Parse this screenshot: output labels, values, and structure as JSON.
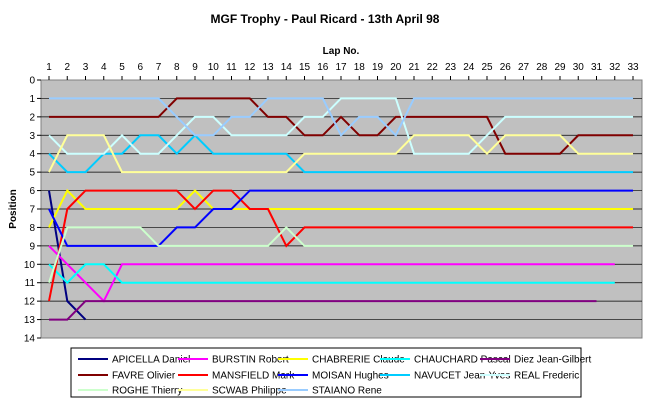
{
  "chart_data": {
    "type": "line",
    "title": "MGF Trophy - Paul Ricard - 13th April 98",
    "xlabel": "Lap No.",
    "ylabel": "Position",
    "x_axis_position": "top",
    "y_reversed": true,
    "xlim": [
      1,
      33
    ],
    "ylim": [
      0,
      14
    ],
    "x_ticks": [
      "1",
      "2",
      "3",
      "4",
      "5",
      "6",
      "7",
      "8",
      "9",
      "10",
      "11",
      "12",
      "13",
      "14",
      "15",
      "16",
      "17",
      "18",
      "19",
      "20",
      "21",
      "22",
      "23",
      "24",
      "25",
      "26",
      "27",
      "28",
      "29",
      "30",
      "31",
      "32",
      "33"
    ],
    "y_ticks": [
      "0",
      "1",
      "2",
      "3",
      "4",
      "5",
      "6",
      "7",
      "8",
      "9",
      "10",
      "11",
      "12",
      "13",
      "14"
    ],
    "grid": true,
    "plot_background": "#c0c0c0",
    "legend_position": "bottom",
    "laps": [
      1,
      2,
      3,
      4,
      5,
      6,
      7,
      8,
      9,
      10,
      11,
      12,
      13,
      14,
      15,
      16,
      17,
      18,
      19,
      20,
      21,
      22,
      23,
      24,
      25,
      26,
      27,
      28,
      29,
      30,
      31,
      32,
      33
    ],
    "series": [
      {
        "name": "APICELLA Daniel",
        "color": "#000080",
        "values": [
          6,
          12,
          13
        ]
      },
      {
        "name": "BURSTIN Robert",
        "color": "#ff00ff",
        "values": [
          9,
          10,
          11,
          12,
          10,
          10,
          10,
          10,
          10,
          10,
          10,
          10,
          10,
          10,
          10,
          10,
          10,
          10,
          10,
          10,
          10,
          10,
          10,
          10,
          10,
          10,
          10,
          10,
          10,
          10,
          10,
          10
        ]
      },
      {
        "name": "CHABRERIE Claude",
        "color": "#ffff00",
        "values": [
          8,
          6,
          7,
          7,
          7,
          7,
          7,
          7,
          6,
          7,
          7,
          7,
          7,
          7,
          7,
          7,
          7,
          7,
          7,
          7,
          7,
          7,
          7,
          7,
          7,
          7,
          7,
          7,
          7,
          7,
          7,
          7,
          7
        ]
      },
      {
        "name": "CHAUCHARD Pascal",
        "color": "#00ffff",
        "values": [
          10,
          11,
          10,
          10,
          11,
          11,
          11,
          11,
          11,
          11,
          11,
          11,
          11,
          11,
          11,
          11,
          11,
          11,
          11,
          11,
          11,
          11,
          11,
          11,
          11,
          11,
          11,
          11,
          11,
          11,
          11,
          11
        ]
      },
      {
        "name": "Diez Jean-Gilbert",
        "color": "#800080",
        "values": [
          13,
          13,
          12,
          12,
          12,
          12,
          12,
          12,
          12,
          12,
          12,
          12,
          12,
          12,
          12,
          12,
          12,
          12,
          12,
          12,
          12,
          12,
          12,
          12,
          12,
          12,
          12,
          12,
          12,
          12,
          12
        ]
      },
      {
        "name": "FAVRE Olivier",
        "color": "#800000",
        "values": [
          2,
          2,
          2,
          2,
          2,
          2,
          2,
          1,
          1,
          1,
          1,
          1,
          2,
          2,
          3,
          3,
          2,
          3,
          3,
          2,
          2,
          2,
          2,
          2,
          2,
          4,
          4,
          4,
          4,
          3,
          3,
          3,
          3
        ]
      },
      {
        "name": "MANSFIELD Mark",
        "color": "#ff0000",
        "values": [
          12,
          7,
          6,
          6,
          6,
          6,
          6,
          6,
          7,
          6,
          6,
          7,
          7,
          9,
          8,
          8,
          8,
          8,
          8,
          8,
          8,
          8,
          8,
          8,
          8,
          8,
          8,
          8,
          8,
          8,
          8,
          8,
          8
        ]
      },
      {
        "name": "MOISAN Hughes",
        "color": "#0000ff",
        "values": [
          7,
          9,
          9,
          9,
          9,
          9,
          9,
          8,
          8,
          7,
          7,
          6,
          6,
          6,
          6,
          6,
          6,
          6,
          6,
          6,
          6,
          6,
          6,
          6,
          6,
          6,
          6,
          6,
          6,
          6,
          6,
          6,
          6
        ]
      },
      {
        "name": "NAVUCET Jean-Yves",
        "color": "#00ccff",
        "values": [
          4,
          5,
          5,
          4,
          4,
          3,
          3,
          4,
          3,
          4,
          4,
          4,
          4,
          4,
          5,
          5,
          5,
          5,
          5,
          5,
          5,
          5,
          5,
          5,
          5,
          5,
          5,
          5,
          5,
          5,
          5,
          5,
          5
        ]
      },
      {
        "name": "REAL Frederic",
        "color": "#ccffff",
        "values": [
          3,
          4,
          4,
          4,
          3,
          4,
          4,
          3,
          2,
          2,
          3,
          3,
          3,
          3,
          2,
          2,
          1,
          1,
          1,
          1,
          4,
          4,
          4,
          4,
          3,
          2,
          2,
          2,
          2,
          2,
          2,
          2,
          2
        ]
      },
      {
        "name": "ROGHE Thierry",
        "color": "#ccffcc",
        "values": [
          11,
          8,
          8,
          8,
          8,
          8,
          9,
          9,
          9,
          9,
          9,
          9,
          9,
          8,
          9,
          9,
          9,
          9,
          9,
          9,
          9,
          9,
          9,
          9,
          9,
          9,
          9,
          9,
          9,
          9,
          9,
          9,
          9
        ]
      },
      {
        "name": "SCWAB Philippe",
        "color": "#ffff99",
        "values": [
          5,
          3,
          3,
          3,
          5,
          5,
          5,
          5,
          5,
          5,
          5,
          5,
          5,
          5,
          4,
          4,
          4,
          4,
          4,
          4,
          3,
          3,
          3,
          3,
          4,
          3,
          3,
          3,
          3,
          4,
          4,
          4,
          4
        ]
      },
      {
        "name": "STAIANO Rene",
        "color": "#99ccff",
        "values": [
          1,
          1,
          1,
          1,
          1,
          1,
          1,
          2,
          3,
          3,
          2,
          2,
          1,
          1,
          1,
          1,
          3,
          2,
          2,
          3,
          1,
          1,
          1,
          1,
          1,
          1,
          1,
          1,
          1,
          1,
          1,
          1,
          1
        ]
      }
    ]
  }
}
